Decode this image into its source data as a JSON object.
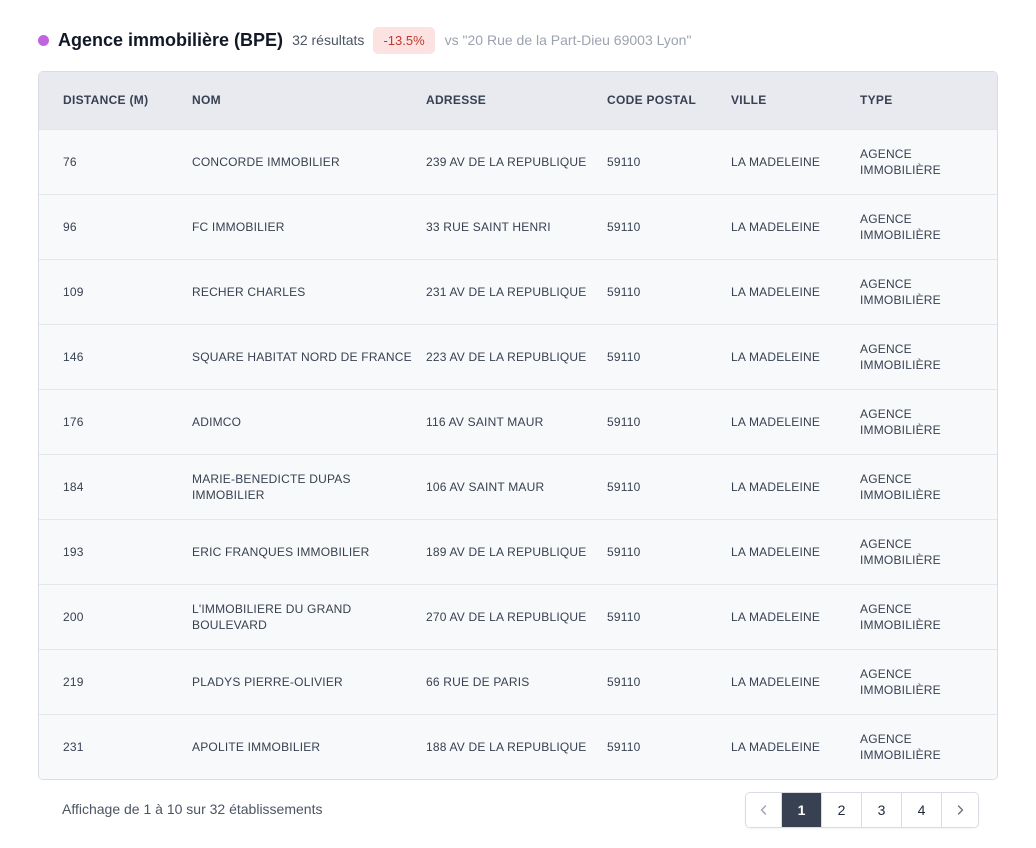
{
  "header": {
    "dot_color": "#c065e0",
    "title": "Agence immobilière (BPE)",
    "count": "32 résultats",
    "badge": "-13.5%",
    "badge_bg": "#fde2e2",
    "badge_color": "#c0392b",
    "comparison": "vs \"20 Rue de la Part-Dieu 69003 Lyon\""
  },
  "table": {
    "columns": [
      "Distance (m)",
      "Nom",
      "Adresse",
      "Code postal",
      "Ville",
      "Type"
    ],
    "rows": [
      [
        "76",
        "CONCORDE IMMOBILIER",
        "239 AV DE LA REPUBLIQUE",
        "59110",
        "LA MADELEINE",
        "Agence immobilière"
      ],
      [
        "96",
        "FC IMMOBILIER",
        "33 RUE SAINT HENRI",
        "59110",
        "LA MADELEINE",
        "Agence immobilière"
      ],
      [
        "109",
        "RECHER CHARLES",
        "231 AV DE LA REPUBLIQUE",
        "59110",
        "LA MADELEINE",
        "Agence immobilière"
      ],
      [
        "146",
        "SQUARE HABITAT NORD DE FRANCE",
        "223 AV DE LA REPUBLIQUE",
        "59110",
        "LA MADELEINE",
        "Agence immobilière"
      ],
      [
        "176",
        "ADIMCO",
        "116 AV SAINT MAUR",
        "59110",
        "LA MADELEINE",
        "Agence immobilière"
      ],
      [
        "184",
        "MARIE-BENEDICTE DUPAS IMMOBILIER",
        "106 AV SAINT MAUR",
        "59110",
        "LA MADELEINE",
        "Agence immobilière"
      ],
      [
        "193",
        "ERIC FRANQUES IMMOBILIER",
        "189 AV DE LA REPUBLIQUE",
        "59110",
        "LA MADELEINE",
        "Agence immobilière"
      ],
      [
        "200",
        "L'IMMOBILIERE DU GRAND BOULEVARD",
        "270 AV DE LA REPUBLIQUE",
        "59110",
        "LA MADELEINE",
        "Agence immobilière"
      ],
      [
        "219",
        "PLADYS PIERRE-OLIVIER",
        "66 RUE DE PARIS",
        "59110",
        "LA MADELEINE",
        "Agence immobilière"
      ],
      [
        "231",
        "APOLITE IMMOBILIER",
        "188 AV DE LA REPUBLIQUE",
        "59110",
        "LA MADELEINE",
        "Agence immobilière"
      ]
    ]
  },
  "footer": {
    "summary": "Affichage de 1 à 10 sur 32 établissements",
    "pages": [
      "1",
      "2",
      "3",
      "4"
    ],
    "current_page": "1",
    "prev_icon": "chevron-left-icon",
    "next_icon": "chevron-right-icon"
  }
}
